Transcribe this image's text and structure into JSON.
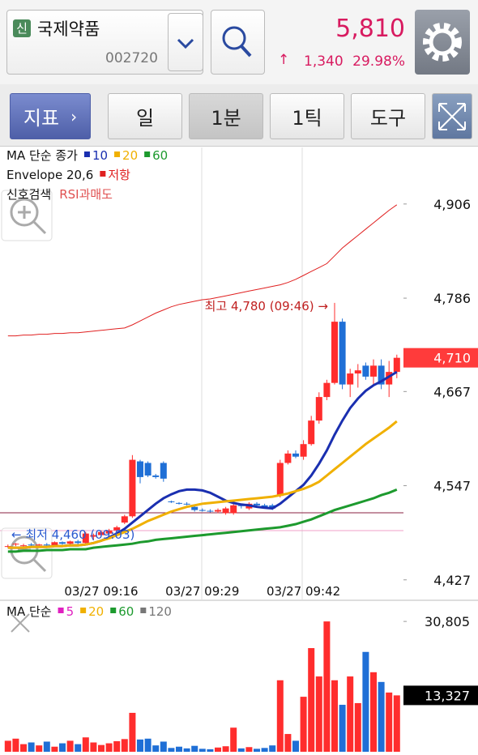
{
  "header": {
    "badge": "신",
    "name": "국제약품",
    "code": "002720",
    "price": "5,810",
    "change_arrow": "↑",
    "change": "1,340",
    "change_rate": "29.98%"
  },
  "toolbar": {
    "indicator": "지표",
    "indicator_arrow": "›",
    "buttons": [
      "일",
      "1분",
      "1틱",
      "도구"
    ]
  },
  "chart_data": [
    {
      "type": "candlestick",
      "legend_title": "MA 단순 종가",
      "categories": [
        null,
        null,
        null,
        null,
        null,
        null,
        null,
        null,
        null,
        null,
        null,
        null,
        "03/27 09:16",
        null,
        null,
        null,
        null,
        null,
        null,
        null,
        null,
        null,
        null,
        null,
        null,
        "03/27 09:29",
        null,
        null,
        null,
        null,
        null,
        null,
        null,
        null,
        null,
        null,
        null,
        null,
        "03/27 09:42",
        null,
        null,
        null,
        null,
        null,
        null,
        null,
        null,
        null,
        null,
        null,
        null
      ],
      "open": [
        4470,
        4472,
        4470,
        4472,
        4471,
        4472,
        4471,
        4475,
        4473,
        4476,
        4474,
        4482,
        4484,
        4486,
        4490,
        4500,
        4508,
        4578,
        4576,
        4560,
        4576,
        4527,
        4525,
        4524,
        4520,
        4516,
        4515,
        4514,
        4512,
        4512,
        4522,
        4518,
        4524,
        4522,
        4522,
        4534,
        4576,
        4588,
        4584,
        4600,
        4630,
        4660,
        4678,
        4756,
        4676,
        4690,
        4700,
        4686,
        4700,
        4676,
        4692
      ],
      "high": [
        4472,
        4474,
        4473,
        4474,
        4473,
        4474,
        4476,
        4476,
        4477,
        4478,
        4488,
        4486,
        4490,
        4492,
        4496,
        4510,
        4586,
        4580,
        4578,
        4562,
        4578,
        4528,
        4526,
        4526,
        4522,
        4518,
        4517,
        4518,
        4520,
        4526,
        4524,
        4526,
        4526,
        4524,
        4524,
        4580,
        4592,
        4592,
        4605,
        4636,
        4666,
        4682,
        4780,
        4760,
        4696,
        4702,
        4704,
        4708,
        4708,
        4706,
        4714
      ],
      "low": [
        4468,
        4470,
        4468,
        4470,
        4469,
        4470,
        4470,
        4472,
        4471,
        4472,
        4472,
        4478,
        4482,
        4484,
        4488,
        4498,
        4506,
        4550,
        4558,
        4556,
        4552,
        4525,
        4523,
        4522,
        4514,
        4514,
        4513,
        4512,
        4510,
        4510,
        4518,
        4516,
        4520,
        4518,
        4516,
        4532,
        4574,
        4582,
        4580,
        4598,
        4626,
        4656,
        4676,
        4670,
        4660,
        4672,
        4682,
        4674,
        4670,
        4660,
        4684
      ],
      "close": [
        4470,
        4473,
        4471,
        4471,
        4472,
        4471,
        4475,
        4473,
        4476,
        4474,
        4486,
        4484,
        4488,
        4490,
        4494,
        4508,
        4580,
        4558,
        4560,
        4558,
        4556,
        4526,
        4524,
        4523,
        4516,
        4515,
        4514,
        4516,
        4518,
        4522,
        4521,
        4524,
        4522,
        4520,
        4518,
        4576,
        4588,
        4584,
        4600,
        4630,
        4660,
        4678,
        4756,
        4676,
        4690,
        4694,
        4686,
        4700,
        4676,
        4692,
        4710
      ],
      "up_color": "#ff2d2d",
      "down_color": "#1f6fd6",
      "series": [
        {
          "name": "10",
          "color": "#1a2fb0",
          "values": [
            4468,
            4468,
            4468,
            4469,
            4469,
            4469,
            4470,
            4470,
            4471,
            4471,
            4472,
            4474,
            4477,
            4481,
            4486,
            4492,
            4500,
            4508,
            4516,
            4524,
            4531,
            4536,
            4540,
            4542,
            4542,
            4541,
            4538,
            4533,
            4528,
            4525,
            4523,
            4522,
            4520,
            4519,
            4518,
            4524,
            4532,
            4540,
            4548,
            4560,
            4575,
            4592,
            4612,
            4630,
            4646,
            4658,
            4668,
            4675,
            4680,
            4686,
            4692
          ]
        },
        {
          "name": "20",
          "color": "#f0b000",
          "values": [
            4468,
            4468,
            4468,
            4469,
            4469,
            4469,
            4470,
            4470,
            4471,
            4471,
            4472,
            4474,
            4477,
            4480,
            4484,
            4488,
            4492,
            4497,
            4502,
            4506,
            4510,
            4514,
            4517,
            4520,
            4522,
            4524,
            4525,
            4526,
            4527,
            4528,
            4529,
            4530,
            4531,
            4532,
            4533,
            4535,
            4537,
            4540,
            4543,
            4547,
            4552,
            4560,
            4568,
            4576,
            4584,
            4592,
            4600,
            4607,
            4614,
            4621,
            4629
          ]
        },
        {
          "name": "60",
          "color": "#1d9a2e",
          "values": [
            4463,
            4463,
            4464,
            4464,
            4464,
            4465,
            4465,
            4465,
            4466,
            4466,
            4466,
            4468,
            4469,
            4470,
            4471,
            4472,
            4473,
            4475,
            4476,
            4478,
            4479,
            4480,
            4481,
            4482,
            4483,
            4484,
            4485,
            4486,
            4487,
            4488,
            4489,
            4490,
            4491,
            4492,
            4493,
            4494,
            4496,
            4498,
            4501,
            4504,
            4508,
            4512,
            4516,
            4519,
            4522,
            4525,
            4528,
            4531,
            4535,
            4538,
            4542
          ]
        }
      ],
      "envelope": {
        "name": "Envelope 20,6",
        "label": "저항",
        "color": "#e02020",
        "values": [
          4738,
          4738,
          4739,
          4739,
          4740,
          4740,
          4741,
          4741,
          4742,
          4742,
          4743,
          4744,
          4745,
          4746,
          4747,
          4748,
          4752,
          4757,
          4762,
          4767,
          4771,
          4775,
          4778,
          4780,
          4782,
          4784,
          4785,
          4787,
          4789,
          4791,
          4793,
          4795,
          4797,
          4799,
          4801,
          4803,
          4806,
          4810,
          4815,
          4820,
          4825,
          4830,
          4840,
          4850,
          4858,
          4866,
          4874,
          4882,
          4890,
          4898,
          4905
        ]
      },
      "signal": {
        "name": "신호검색",
        "label": "RSI과매도"
      },
      "ylim": [
        4402,
        4975
      ],
      "yticks": [
        {
          "value": 4906,
          "label": "4,906"
        },
        {
          "value": 4786,
          "label": "4,786"
        },
        {
          "value": 4667,
          "label": "4,667"
        },
        {
          "value": 4547,
          "label": "4,547"
        },
        {
          "value": 4427,
          "label": "4,427"
        }
      ],
      "last": {
        "value": 4710,
        "label": "4,710"
      },
      "annotations": [
        "최고 4,780 (09:46) →",
        "← 최저 4,460 (09:03)"
      ]
    },
    {
      "type": "bar",
      "legend_title": "MA 단순",
      "legend": [
        {
          "name": "5",
          "color": "#e020c0"
        },
        {
          "name": "20",
          "color": "#f0b000"
        },
        {
          "name": "60",
          "color": "#1d9a2e"
        },
        {
          "name": "120",
          "color": "#777777"
        }
      ],
      "values": [
        2600,
        3100,
        1800,
        2200,
        1500,
        2400,
        1200,
        2000,
        2600,
        1800,
        3400,
        2200,
        1600,
        2000,
        2500,
        3000,
        9200,
        2900,
        3100,
        1500,
        2400,
        900,
        1200,
        800,
        1400,
        700,
        600,
        1000,
        1300,
        5700,
        800,
        1100,
        700,
        900,
        1500,
        16900,
        4200,
        2600,
        13000,
        24500,
        17800,
        30805,
        16900,
        11100,
        17800,
        11500,
        23600,
        18800,
        16500,
        14000,
        13327
      ],
      "ylim": [
        0,
        33700
      ],
      "yticks": [
        {
          "value": 30805,
          "label": "30,805"
        }
      ],
      "last": {
        "value": 13327,
        "label": "13,327"
      }
    }
  ]
}
